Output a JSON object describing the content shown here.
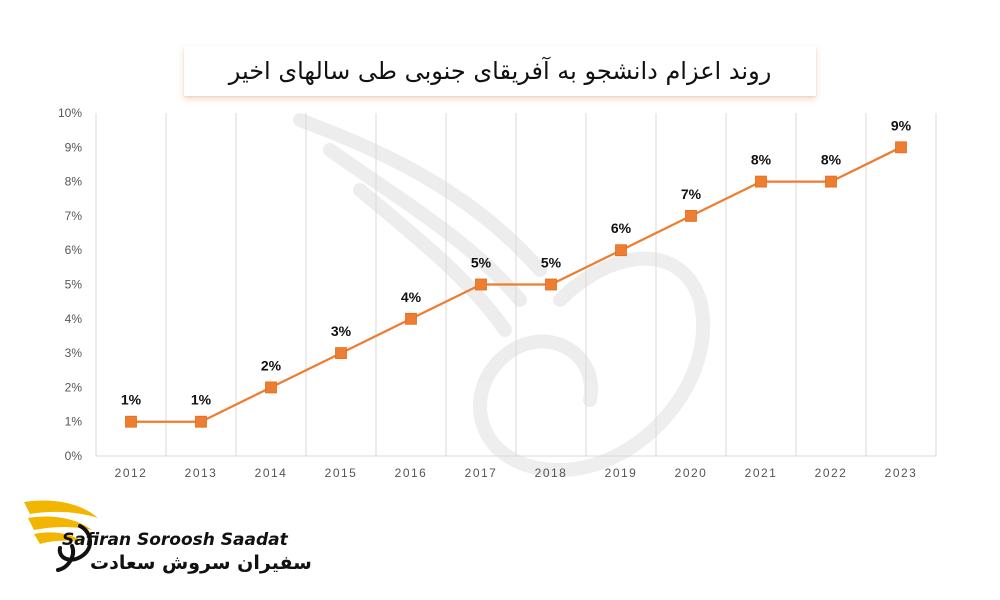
{
  "chart_data": {
    "type": "line",
    "title": "روند اعزام دانشجو به آفریقای جنوبی طی سالهای اخیر",
    "categories": [
      "2012",
      "2013",
      "2014",
      "2015",
      "2016",
      "2017",
      "2018",
      "2019",
      "2020",
      "2021",
      "2022",
      "2023"
    ],
    "series": [
      {
        "values": [
          1,
          1,
          2,
          3,
          4,
          5,
          5,
          6,
          7,
          8,
          8,
          9
        ],
        "labels": [
          "1%",
          "1%",
          "2%",
          "3%",
          "4%",
          "5%",
          "5%",
          "6%",
          "7%",
          "8%",
          "8%",
          "9%"
        ],
        "color": "#ED7D31",
        "marker": "square"
      }
    ],
    "y_ticks": [
      "0%",
      "1%",
      "2%",
      "3%",
      "4%",
      "5%",
      "6%",
      "7%",
      "8%",
      "9%",
      "10%"
    ],
    "ylim": [
      0,
      10
    ],
    "grid": "vertical",
    "xlabel": "",
    "ylabel": ""
  },
  "brand": {
    "name_en": "Safiran Soroosh Saadat",
    "name_fa": "سفیران سروش سعادت",
    "logo_color": "#F2B600"
  }
}
